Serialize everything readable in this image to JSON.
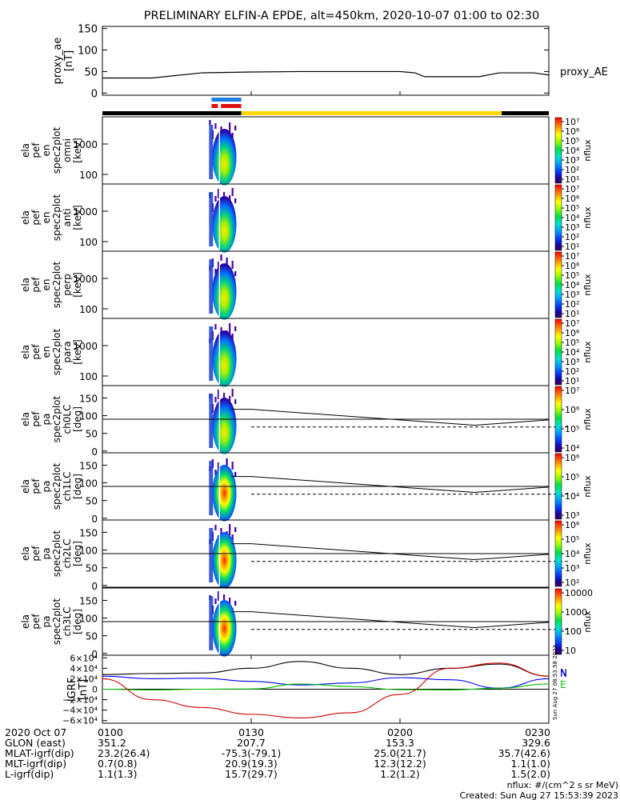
{
  "title": "PRELIMINARY ELFIN-A EPDE, alt=450km, 2020-10-07 01:00 to 02:30",
  "chart_data": {
    "type": "stacked-panels",
    "time_range_ut": [
      "01:00",
      "02:30"
    ],
    "proxy_ae": {
      "ylabel_lines": [
        "proxy_ae",
        "[nT]"
      ],
      "side_label": "proxy_AE",
      "ylim": [
        -5,
        155
      ],
      "ticks": [
        "150",
        "100",
        "50",
        "0"
      ],
      "x_min": [
        0,
        10,
        20,
        30,
        40,
        50,
        60,
        63,
        65,
        70,
        76,
        80,
        87,
        90
      ],
      "y": [
        35,
        35,
        47,
        49,
        50,
        50,
        50,
        47,
        38,
        38,
        38,
        47,
        47,
        42
      ]
    },
    "orbit_bar": {
      "segments": [
        {
          "start_min": 0,
          "end_min": 28,
          "color": "#000000"
        },
        {
          "start_min": 28,
          "end_min": 80.5,
          "color": "#ffd700"
        },
        {
          "start_min": 80.5,
          "end_min": 90,
          "color": "#000000"
        }
      ],
      "blue_span_min": [
        22.0,
        28.0
      ],
      "red_spans_min": [
        [
          22.0,
          23.3
        ],
        [
          23.9,
          28.0
        ]
      ]
    },
    "energy_panels": [
      {
        "ylabel_lines": [
          "ela",
          "pef",
          "en",
          "spec2plot",
          "omni",
          "[keV]"
        ]
      },
      {
        "ylabel_lines": [
          "ela",
          "pef",
          "en",
          "spec2plot",
          "anti",
          "[keV]"
        ]
      },
      {
        "ylabel_lines": [
          "ela",
          "pef",
          "en",
          "spec2plot",
          "perp",
          "[keV]"
        ]
      },
      {
        "ylabel_lines": [
          "ela",
          "pef",
          "en",
          "spec2plot",
          "para",
          "[keV]"
        ]
      }
    ],
    "energy_ticks": [
      "1000",
      "100"
    ],
    "pitch_panels": [
      {
        "ylabel_lines": [
          "ela",
          "pef",
          "pa",
          "spec2plot",
          "ch0LC",
          "[deg]"
        ]
      },
      {
        "ylabel_lines": [
          "ela",
          "pef",
          "pa",
          "spec2plot",
          "ch1LC",
          "[deg]"
        ]
      },
      {
        "ylabel_lines": [
          "ela",
          "pef",
          "pa",
          "spec2plot",
          "ch2LC",
          "[deg]"
        ]
      },
      {
        "ylabel_lines": [
          "ela",
          "pef",
          "pa",
          "spec2plot",
          "ch3LC",
          "[deg]"
        ]
      }
    ],
    "pitch_ticks": [
      "150",
      "100",
      "50",
      "0"
    ],
    "loss_cone": {
      "x_min": [
        26,
        30,
        60,
        75,
        90
      ],
      "solid_deg": [
        118,
        118,
        88,
        73,
        88
      ],
      "dashed_deg": [
        68,
        68,
        68,
        68,
        68
      ],
      "reference_deg": 90
    },
    "colorbars": {
      "label": "nflux",
      "energy_1": [
        "10⁷",
        "10⁶",
        "10⁵",
        "10⁴",
        "10³",
        "10²",
        "10¹"
      ],
      "energy_2": [
        "10⁷",
        "10⁶",
        "10⁵",
        "10⁴",
        "10³",
        "10²",
        "10¹"
      ],
      "energy_3": [
        "10⁷",
        "10⁶",
        "10⁵",
        "10⁴",
        "10³",
        "10²",
        "10¹"
      ],
      "energy_4": [
        "10⁷",
        "10⁶",
        "10⁵",
        "10⁴",
        "10³",
        "10²",
        "10¹"
      ],
      "pitch_1": [
        "10⁷",
        "10⁶",
        "10⁵",
        "10⁴"
      ],
      "pitch_2": [
        "10⁶",
        "10⁵",
        "10⁴",
        "10³"
      ],
      "pitch_3": [
        "10⁶",
        "10⁵",
        "10⁴",
        "10³",
        "10²"
      ],
      "pitch_4": [
        "10000",
        "1000",
        "100",
        "10"
      ]
    },
    "igrf": {
      "ylabel_lines": [
        "IGRF",
        "[nT]"
      ],
      "ylim": [
        -65000,
        65000
      ],
      "ticks": [
        "6×10⁴",
        "4×10⁴",
        "2×10⁴",
        "0",
        "−2×10⁴",
        "−4×10⁴",
        "−6×10⁴"
      ],
      "x_min": [
        0,
        10,
        20,
        30,
        40,
        50,
        60,
        70,
        80,
        90
      ],
      "series": [
        {
          "name": "N",
          "color": "#000000",
          "values": [
            28000,
            30000,
            31000,
            40000,
            53000,
            40000,
            28000,
            40000,
            48000,
            25000
          ]
        },
        {
          "name": "N",
          "color": "#0000ff",
          "values": [
            25000,
            20000,
            21000,
            15000,
            8000,
            12000,
            22000,
            18000,
            2000,
            20000
          ]
        },
        {
          "name": "E",
          "color": "#00c000",
          "values": [
            0,
            -1500,
            0,
            500,
            10000,
            5000,
            -800,
            -1500,
            2000,
            10000
          ]
        },
        {
          "name": "",
          "color": "#d00000",
          "values": [
            20000,
            -20000,
            -35000,
            -48000,
            -55000,
            -45000,
            -10000,
            40000,
            50000,
            25000
          ]
        }
      ],
      "legend": [
        "N",
        "N",
        "E"
      ],
      "side_stamp": "Sun Aug 27 08:53:58 2023"
    },
    "ephemeris": {
      "row_labels": [
        "2020 Oct 07",
        "GLON (east)",
        "MLAT-igrf(dip)",
        "MLT-igrf(dip)",
        "L-igrf(dip)"
      ],
      "columns": [
        {
          "time": "0100",
          "x_min": 0,
          "values": [
            "351.2",
            "23.2(26.4)",
            "0.7(0.8)",
            "1.1(1.3)"
          ]
        },
        {
          "time": "0130",
          "x_min": 30,
          "values": [
            "207.7",
            "-75.3(-79.1)",
            "20.9(19.3)",
            "15.7(29.7)"
          ]
        },
        {
          "time": "0200",
          "x_min": 60,
          "values": [
            "153.3",
            "25.0(21.7)",
            "12.3(12.2)",
            "1.2(1.2)"
          ]
        },
        {
          "time": "0230",
          "x_min": 90,
          "values": [
            "329.6",
            "35.7(42.6)",
            "1.1(1.0)",
            "1.5(2.0)"
          ]
        }
      ]
    },
    "footer": {
      "units": "nflux: #/(cm^2 s sr MeV)",
      "created": "Created: Sun Aug 27 15:53:39 2023"
    }
  }
}
